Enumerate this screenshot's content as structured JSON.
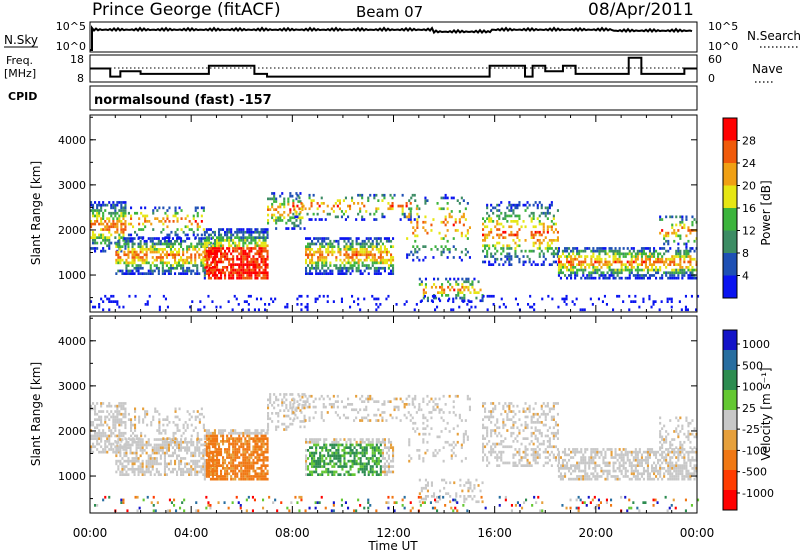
{
  "header": {
    "station": "Prince George (fitACF)",
    "beam": "Beam 07",
    "date": "08/Apr/2011"
  },
  "nsky_panel": {
    "left_label": "N.Sky",
    "left_ticks": [
      "10^5",
      "10^0"
    ],
    "right_label": "N.Search",
    "right_ticks": [
      "10^5",
      "10^0"
    ]
  },
  "freq_panel": {
    "left_label_top": "Freq.",
    "left_label_bottom": "[MHz]",
    "left_ticks": [
      "18",
      "8"
    ],
    "right_label": "Nave",
    "right_ticks": [
      "60",
      "0"
    ]
  },
  "cpid": {
    "label": "CPID",
    "value": "normalsound (fast) -157"
  },
  "colors": {
    "power_scale": [
      "#0a14f0",
      "#1e50b4",
      "#3c8c64",
      "#3cb43c",
      "#e6e614",
      "#f0a014",
      "#f05a0a",
      "#ff0000"
    ],
    "velocity_scale": [
      "#1414c8",
      "#286ea0",
      "#2d8c50",
      "#64c832",
      "#c8c8c8",
      "#e6a03c",
      "#f07814",
      "#ff3c00",
      "#ff0000"
    ]
  },
  "chart_data": [
    {
      "type": "heatmap",
      "name": "power",
      "ylabel": "Slant Range [km]",
      "yticks": [
        1000,
        2000,
        3000,
        4000
      ],
      "ylim": [
        180,
        4550
      ],
      "xticks": [
        "00:00",
        "04:00",
        "08:00",
        "12:00",
        "16:00",
        "20:00",
        "00:00"
      ],
      "xlim_hours": [
        0,
        24
      ],
      "colorbar": {
        "label": "Power [dB]",
        "ticks": [
          "28",
          "24",
          "20",
          "16",
          "12",
          "8",
          "4"
        ],
        "range": [
          0,
          32
        ]
      }
    },
    {
      "type": "heatmap",
      "name": "velocity",
      "ylabel": "Slant Range [km]",
      "yticks": [
        1000,
        2000,
        3000,
        4000
      ],
      "ylim": [
        180,
        4550
      ],
      "xticks": [
        "00:00",
        "04:00",
        "08:00",
        "12:00",
        "16:00",
        "20:00",
        "00:00"
      ],
      "xlim_hours": [
        0,
        24
      ],
      "xlabel": "Time UT",
      "colorbar": {
        "label": "Velocity [m s⁻¹]",
        "ticks": [
          "1000",
          "500",
          "100",
          "25",
          "-25",
          "-100",
          "-500",
          "-1000"
        ]
      }
    },
    {
      "type": "line",
      "name": "frequency",
      "x_hours": [
        0,
        0.3,
        0.8,
        1.2,
        2.0,
        3.0,
        4.0,
        4.7,
        5.7,
        6.5,
        7.0,
        9.0,
        12.0,
        14.0,
        15.5,
        15.8,
        16.5,
        17.2,
        17.5,
        18.0,
        18.7,
        19.2,
        20.0,
        21.0,
        21.3,
        21.8,
        22.5,
        23.5,
        24.0
      ],
      "y_mhz": [
        13,
        13,
        10,
        12,
        11,
        11,
        11,
        14,
        14,
        11,
        10,
        10,
        10,
        10,
        10,
        14,
        14,
        10,
        14,
        12,
        14,
        11,
        11,
        11,
        17,
        11,
        11,
        13,
        13
      ]
    }
  ]
}
